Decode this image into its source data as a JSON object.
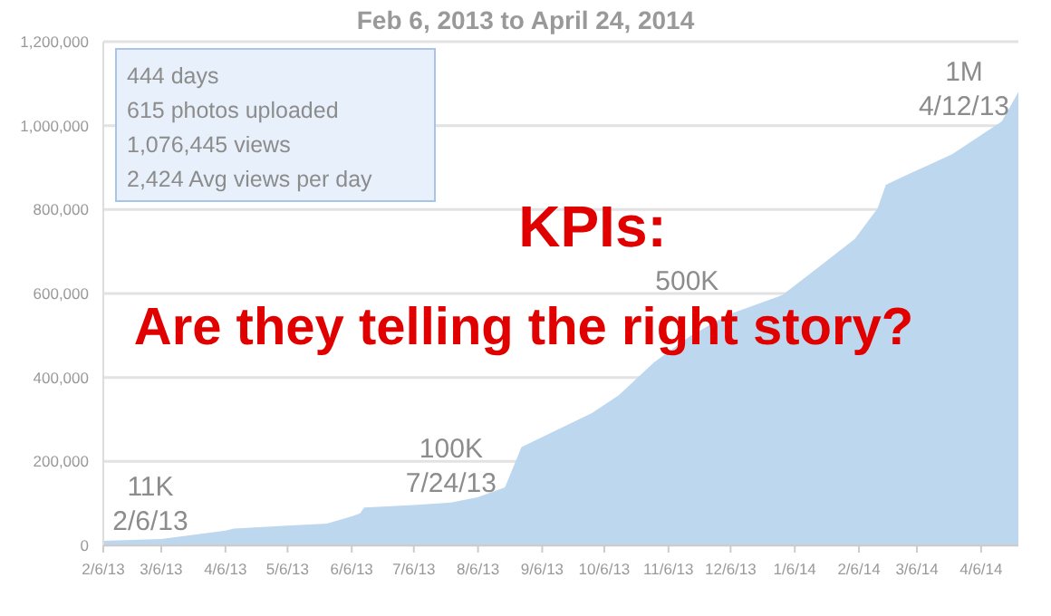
{
  "chart_data": {
    "type": "area",
    "title": "Feb 6, 2013 to April 24, 2014",
    "x": [
      "2013-02-06",
      "2013-03-06",
      "2013-04-06",
      "2013-04-10",
      "2013-05-06",
      "2013-05-25",
      "2013-06-06",
      "2013-06-10",
      "2013-06-12",
      "2013-07-06",
      "2013-07-24",
      "2013-08-06",
      "2013-08-19",
      "2013-08-27",
      "2013-09-08",
      "2013-09-30",
      "2013-10-13",
      "2013-10-30",
      "2013-11-17",
      "2013-12-05",
      "2013-12-31",
      "2014-01-18",
      "2014-02-04",
      "2014-02-15",
      "2014-02-19",
      "2014-02-28",
      "2014-03-23",
      "2014-04-16",
      "2014-04-24"
    ],
    "series": [
      {
        "color": "#bdd7ee",
        "values": [
          11000,
          15000,
          35000,
          40000,
          47000,
          52000,
          69000,
          76000,
          90000,
          96000,
          102000,
          115000,
          138000,
          234000,
          263000,
          315000,
          358000,
          436000,
          500000,
          550000,
          596000,
          665000,
          730000,
          803000,
          859000,
          880000,
          932000,
          1010000,
          1080000
        ]
      }
    ],
    "xlim": [
      "2013-02-06",
      "2014-04-24"
    ],
    "xticks": [
      {
        "value": "2013-02-06",
        "label": "2/6/13"
      },
      {
        "value": "2013-03-06",
        "label": "3/6/13"
      },
      {
        "value": "2013-04-06",
        "label": "4/6/13"
      },
      {
        "value": "2013-05-06",
        "label": "5/6/13"
      },
      {
        "value": "2013-06-06",
        "label": "6/6/13"
      },
      {
        "value": "2013-07-06",
        "label": "7/6/13"
      },
      {
        "value": "2013-08-06",
        "label": "8/6/13"
      },
      {
        "value": "2013-09-06",
        "label": "9/6/13"
      },
      {
        "value": "2013-10-06",
        "label": "10/6/13"
      },
      {
        "value": "2013-11-06",
        "label": "11/6/13"
      },
      {
        "value": "2013-12-06",
        "label": "12/6/13"
      },
      {
        "value": "2014-01-06",
        "label": "1/6/14"
      },
      {
        "value": "2014-02-06",
        "label": "2/6/14"
      },
      {
        "value": "2014-03-06",
        "label": "3/6/14"
      },
      {
        "value": "2014-04-06",
        "label": "4/6/14"
      }
    ],
    "ylim": [
      0,
      1200000
    ],
    "yticks": [
      {
        "value": 0,
        "label": "0"
      },
      {
        "value": 200000,
        "label": "200,000"
      },
      {
        "value": 400000,
        "label": "400,000"
      },
      {
        "value": 600000,
        "label": "600,000"
      },
      {
        "value": 800000,
        "label": "800,000"
      },
      {
        "value": 1000000,
        "label": "1,000,000"
      },
      {
        "value": 1200000,
        "label": "1,200,000"
      }
    ],
    "grid": "y",
    "annotations": [
      "444 days\n615 photos uploaded\n1,076,445 views\n2,424 Avg views per day",
      "KPIs:\nAre they telling the right story?",
      {
        "text": "11K\n2/6/13",
        "x": "2013-02-06",
        "y": 11000
      },
      {
        "text": "100K\n7/24/13",
        "x": "2013-07-24",
        "y": 102000
      },
      {
        "text": "500K",
        "x": "2013-11-15",
        "y": 500000
      },
      {
        "text": "1M\n4/12/13",
        "x": "2014-04-12",
        "y": 1000000
      }
    ]
  }
}
